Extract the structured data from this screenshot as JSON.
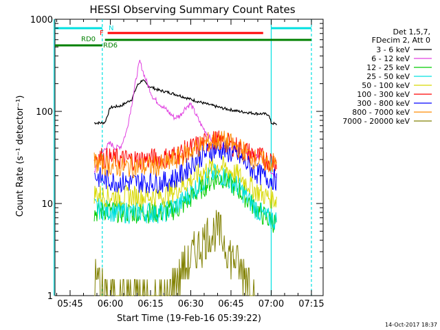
{
  "chart_data": {
    "type": "line",
    "title": "HESSI Observing Summary Count Rates",
    "xlabel": "Start Time (19-Feb-16 05:39:22)",
    "ylabel": "Count Rate (s⁻¹ detector⁻¹)",
    "y_scale": "log",
    "ylim": [
      1,
      1000
    ],
    "xlim": [
      "05:39:22",
      "07:19:22"
    ],
    "x_ticks": [
      "05:45",
      "06:00",
      "06:15",
      "06:30",
      "06:45",
      "07:00",
      "07:15"
    ],
    "y_ticks": [
      "1",
      "10",
      "100",
      "1000"
    ],
    "grid": false,
    "legend_position": "top-right",
    "legend_header": [
      "Det 1,5,7,",
      "FDecim 2, Att 0"
    ],
    "series": [
      {
        "name": "3 - 6 keV",
        "color": "#000000",
        "x": [
          "05:54",
          "05:57",
          "05:58",
          "06:00",
          "06:04",
          "06:08",
          "06:10",
          "06:12",
          "06:14",
          "06:18",
          "06:22",
          "06:26",
          "06:30",
          "06:36",
          "06:42",
          "06:48",
          "06:54",
          "06:59",
          "07:00",
          "07:02"
        ],
        "y": [
          75,
          75,
          76,
          110,
          115,
          135,
          190,
          220,
          190,
          170,
          160,
          148,
          135,
          120,
          108,
          100,
          95,
          93,
          75,
          72
        ]
      },
      {
        "name": "6 - 12 keV",
        "color": "#e040e0",
        "x": [
          "05:54",
          "05:56",
          "05:58",
          "06:00",
          "06:02",
          "06:04",
          "06:06",
          "06:08",
          "06:10",
          "06:11",
          "06:13",
          "06:16",
          "06:20",
          "06:24",
          "06:26",
          "06:28",
          "06:30",
          "06:34",
          "06:38",
          "06:42",
          "06:48",
          "06:54",
          "06:58",
          "07:00",
          "07:02"
        ],
        "y": [
          22,
          30,
          40,
          45,
          40,
          42,
          60,
          120,
          260,
          350,
          230,
          140,
          110,
          85,
          90,
          110,
          120,
          70,
          48,
          42,
          38,
          33,
          30,
          22,
          20
        ]
      },
      {
        "name": "12 - 25 keV",
        "color": "#00cc00",
        "x": [
          "05:54",
          "05:58",
          "06:04",
          "06:12",
          "06:20",
          "06:26",
          "06:32",
          "06:38",
          "06:42",
          "06:48",
          "06:54",
          "06:58",
          "07:02"
        ],
        "y": [
          8,
          8.5,
          8,
          8,
          8,
          9,
          13,
          18,
          19,
          14,
          9,
          7,
          6
        ]
      },
      {
        "name": "25 - 50 keV",
        "color": "#00e0e0",
        "x": [
          "05:54",
          "05:58",
          "06:04",
          "06:12",
          "06:20",
          "06:26",
          "06:32",
          "06:38",
          "06:42",
          "06:48",
          "06:54",
          "06:58",
          "07:02"
        ],
        "y": [
          9,
          8.5,
          8,
          8,
          8,
          10,
          15,
          21,
          20,
          15,
          9,
          7,
          6.5
        ]
      },
      {
        "name": "50 - 100 keV",
        "color": "#d8d800",
        "x": [
          "05:54",
          "05:58",
          "06:04",
          "06:12",
          "06:20",
          "06:26",
          "06:32",
          "06:38",
          "06:42",
          "06:48",
          "06:54",
          "06:58",
          "07:02"
        ],
        "y": [
          13,
          12,
          12,
          12,
          12,
          15,
          20,
          25,
          25,
          20,
          14,
          12,
          11
        ]
      },
      {
        "name": "100 - 300 keV",
        "color": "#ff0000",
        "x": [
          "05:54",
          "05:58",
          "06:04",
          "06:12",
          "06:20",
          "06:26",
          "06:32",
          "06:38",
          "06:42",
          "06:48",
          "06:54",
          "06:58",
          "07:02"
        ],
        "y": [
          33,
          31,
          30,
          30,
          31,
          35,
          42,
          48,
          47,
          40,
          33,
          30,
          29
        ]
      },
      {
        "name": "300 - 800 keV",
        "color": "#0000ff",
        "x": [
          "05:54",
          "05:58",
          "06:04",
          "06:12",
          "06:20",
          "06:26",
          "06:32",
          "06:38",
          "06:42",
          "06:48",
          "06:54",
          "06:58",
          "07:02"
        ],
        "y": [
          20,
          18,
          17,
          17,
          17,
          20,
          30,
          38,
          38,
          32,
          22,
          19,
          18
        ]
      },
      {
        "name": "800 - 7000 keV",
        "color": "#ff8c00",
        "x": [
          "05:54",
          "05:58",
          "06:04",
          "06:12",
          "06:20",
          "06:26",
          "06:32",
          "06:38",
          "06:42",
          "06:48",
          "06:54",
          "06:58",
          "07:02"
        ],
        "y": [
          28,
          26,
          25,
          25,
          26,
          32,
          40,
          48,
          48,
          40,
          30,
          28,
          27
        ]
      },
      {
        "name": "7000 - 20000 keV",
        "color": "#808000",
        "x": [
          "05:54",
          "05:56",
          "05:58",
          "06:22",
          "06:24",
          "06:28",
          "06:32",
          "06:36",
          "06:40",
          "06:42",
          "06:44",
          "06:48",
          "06:52",
          "06:54"
        ],
        "y": [
          1.5,
          1.5,
          1,
          1,
          1.5,
          2,
          3,
          4.5,
          5,
          4,
          3,
          2,
          1.5,
          1
        ]
      }
    ],
    "flags": [
      {
        "label": "N",
        "color": "#00e0e0",
        "segments": [
          [
            "05:39",
            "05:57"
          ],
          [
            "07:00",
            "07:15"
          ]
        ]
      },
      {
        "label": "F",
        "color": "#ff0000",
        "segments": [
          [
            "05:59",
            "06:57"
          ]
        ]
      },
      {
        "label": "RD0",
        "color": "#008000",
        "segments": [
          [
            "05:39",
            "05:57"
          ]
        ]
      },
      {
        "label": "RD6",
        "color": "#008000",
        "segments": [
          [
            "05:58",
            "06:20"
          ],
          [
            "06:20",
            "06:55"
          ],
          [
            "06:55",
            "07:15"
          ]
        ]
      }
    ],
    "vertical_markers": [
      {
        "time": "05:39",
        "color": "#00e0e0",
        "style": "solid"
      },
      {
        "time": "05:57",
        "color": "#00e0e0",
        "style": "dashed"
      },
      {
        "time": "07:00",
        "color": "#00e0e0",
        "style": "solid"
      },
      {
        "time": "07:15",
        "color": "#00e0e0",
        "style": "dashed"
      }
    ],
    "timestamp": "14-Oct-2017 18:37"
  }
}
